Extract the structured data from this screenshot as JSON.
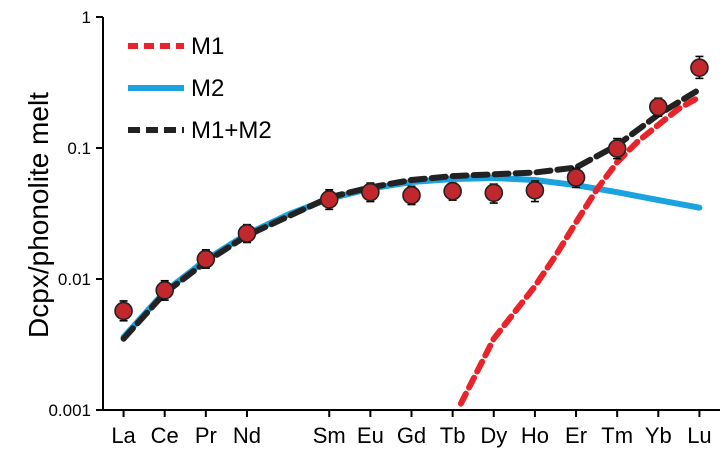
{
  "chart_data": {
    "type": "line",
    "title": "",
    "xlabel": "",
    "ylabel": "Dcpx/phonolite melt",
    "yscale": "log",
    "ylim": [
      0.001,
      1
    ],
    "y_ticks": [
      "0.001",
      "0.01",
      "0.1",
      "1"
    ],
    "categories": [
      "La",
      "Ce",
      "Pr",
      "Nd",
      "Sm",
      "Eu",
      "Gd",
      "Tb",
      "Dy",
      "Ho",
      "Er",
      "Tm",
      "Yb",
      "Lu"
    ],
    "category_positions": [
      57,
      58,
      59,
      60,
      62,
      63,
      64,
      65,
      66,
      67,
      68,
      69,
      70,
      71
    ],
    "legend_position": "top-left",
    "grid": false,
    "series": [
      {
        "name": "M1",
        "style": "dashed",
        "color": "#e8242a",
        "points": [
          [
            65.2,
            0.00112
          ],
          [
            66.0,
            0.0035
          ],
          [
            67.0,
            0.0088
          ],
          [
            67.5,
            0.015
          ],
          [
            68.0,
            0.027
          ],
          [
            68.5,
            0.048
          ],
          [
            69.0,
            0.078
          ],
          [
            69.5,
            0.112
          ],
          [
            70.0,
            0.15
          ],
          [
            70.5,
            0.2
          ],
          [
            71.0,
            0.245
          ]
        ]
      },
      {
        "name": "M2",
        "style": "solid",
        "color": "#1ba3e0",
        "points": [
          [
            57.0,
            0.0036
          ],
          [
            58.0,
            0.008
          ],
          [
            59.0,
            0.014
          ],
          [
            60.0,
            0.022
          ],
          [
            61.0,
            0.031
          ],
          [
            62.0,
            0.041
          ],
          [
            63.0,
            0.049
          ],
          [
            64.0,
            0.055
          ],
          [
            65.0,
            0.058
          ],
          [
            66.0,
            0.059
          ],
          [
            67.0,
            0.057
          ],
          [
            68.0,
            0.052
          ],
          [
            69.0,
            0.046
          ],
          [
            70.0,
            0.04
          ],
          [
            71.0,
            0.035
          ]
        ]
      },
      {
        "name": "M1+M2",
        "style": "dashed",
        "color": "#222222",
        "points": [
          [
            57.0,
            0.0035
          ],
          [
            58.0,
            0.0078
          ],
          [
            59.0,
            0.0135
          ],
          [
            60.0,
            0.0215
          ],
          [
            61.0,
            0.03
          ],
          [
            62.0,
            0.042
          ],
          [
            63.0,
            0.05
          ],
          [
            64.0,
            0.057
          ],
          [
            65.0,
            0.061
          ],
          [
            66.0,
            0.063
          ],
          [
            67.0,
            0.065
          ],
          [
            68.0,
            0.071
          ],
          [
            69.0,
            0.105
          ],
          [
            70.0,
            0.18
          ],
          [
            71.0,
            0.28
          ]
        ]
      },
      {
        "name": "",
        "type": "scatter",
        "color": "#c0282d",
        "points": [
          [
            57.0,
            0.0057
          ],
          [
            58.0,
            0.0082
          ],
          [
            59.0,
            0.0142
          ],
          [
            60.0,
            0.0223
          ],
          [
            62.0,
            0.0405
          ],
          [
            63.0,
            0.046
          ],
          [
            64.0,
            0.0435
          ],
          [
            65.0,
            0.0468
          ],
          [
            66.0,
            0.0455
          ],
          [
            67.0,
            0.0475
          ],
          [
            68.0,
            0.0595
          ],
          [
            69.0,
            0.099
          ],
          [
            70.0,
            0.206
          ],
          [
            71.0,
            0.41
          ]
        ],
        "error_hi": [
          0.0068,
          0.0097,
          0.0167,
          0.026,
          0.048,
          0.054,
          0.051,
          0.054,
          0.053,
          0.056,
          0.07,
          0.118,
          0.24,
          0.5
        ],
        "error_lo": [
          0.0048,
          0.0069,
          0.0121,
          0.019,
          0.034,
          0.039,
          0.037,
          0.04,
          0.038,
          0.039,
          0.05,
          0.083,
          0.175,
          0.34
        ]
      }
    ]
  }
}
